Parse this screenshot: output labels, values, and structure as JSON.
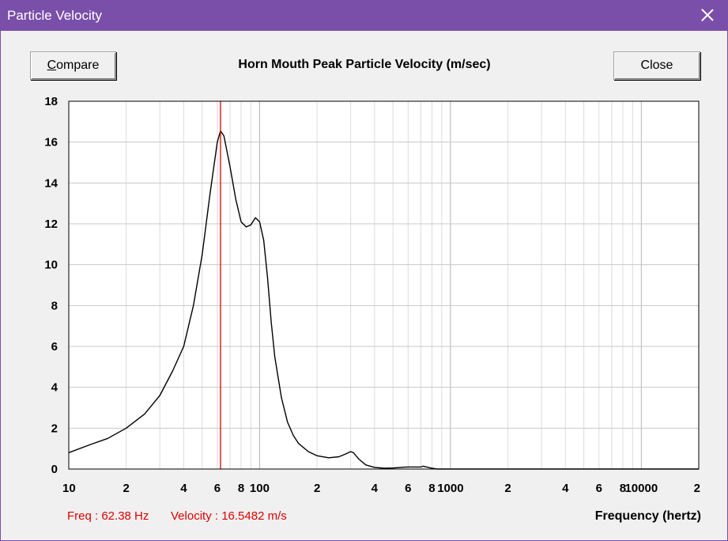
{
  "window": {
    "title": "Particle Velocity"
  },
  "buttons": {
    "compare_prefix": "C",
    "compare_rest": "ompare",
    "close": "Close"
  },
  "readout": {
    "freq": "Freq : 62.38 Hz",
    "velocity": "Velocity : 16.5482 m/s"
  },
  "colors": {
    "titlebar": "#7a4fa9",
    "curve": "#000000",
    "cursor": "#e00000",
    "grid": "#c8c8c8"
  },
  "chart_data": {
    "type": "line",
    "title": "Horn Mouth Peak Particle Velocity (m/sec)",
    "xlabel": "Frequency (hertz)",
    "ylabel": "",
    "xscale": "log",
    "xlim": [
      10,
      20000
    ],
    "ylim": [
      0,
      18
    ],
    "grid": true,
    "yticks": [
      0,
      2,
      4,
      6,
      8,
      10,
      12,
      14,
      16,
      18
    ],
    "xtick_labels": [
      {
        "f": 10,
        "label": "10"
      },
      {
        "f": 20,
        "label": "2"
      },
      {
        "f": 40,
        "label": "4"
      },
      {
        "f": 60,
        "label": "6"
      },
      {
        "f": 80,
        "label": "8"
      },
      {
        "f": 100,
        "label": "100"
      },
      {
        "f": 200,
        "label": "2"
      },
      {
        "f": 400,
        "label": "4"
      },
      {
        "f": 600,
        "label": "6"
      },
      {
        "f": 800,
        "label": "8"
      },
      {
        "f": 1000,
        "label": "1000"
      },
      {
        "f": 2000,
        "label": "2"
      },
      {
        "f": 4000,
        "label": "4"
      },
      {
        "f": 6000,
        "label": "6"
      },
      {
        "f": 8000,
        "label": "8"
      },
      {
        "f": 10000,
        "label": "10000"
      },
      {
        "f": 20000,
        "label": "2"
      }
    ],
    "cursor_freq": 62.38,
    "series": [
      {
        "name": "Peak Particle Velocity",
        "x": [
          10,
          13,
          16,
          20,
          25,
          30,
          35,
          40,
          45,
          50,
          55,
          60,
          62.4,
          65,
          70,
          75,
          80,
          85,
          90,
          95,
          100,
          105,
          110,
          115,
          120,
          130,
          140,
          150,
          160,
          180,
          200,
          230,
          260,
          280,
          300,
          310,
          330,
          360,
          400,
          450,
          500,
          550,
          600,
          650,
          700,
          720,
          750,
          800,
          850,
          1000,
          2000,
          5000,
          10000,
          20000
        ],
        "y": [
          0.8,
          1.2,
          1.5,
          2.0,
          2.7,
          3.6,
          4.8,
          6.0,
          8.0,
          10.5,
          13.5,
          16.0,
          16.55,
          16.3,
          14.8,
          13.2,
          12.1,
          11.85,
          11.95,
          12.3,
          12.1,
          11.2,
          9.4,
          7.2,
          5.5,
          3.5,
          2.3,
          1.65,
          1.25,
          0.85,
          0.65,
          0.55,
          0.6,
          0.72,
          0.85,
          0.8,
          0.5,
          0.2,
          0.08,
          0.04,
          0.05,
          0.08,
          0.1,
          0.1,
          0.1,
          0.14,
          0.1,
          0.04,
          0.0,
          0.0,
          0.0,
          0.0,
          0.0,
          0.0
        ]
      }
    ]
  }
}
